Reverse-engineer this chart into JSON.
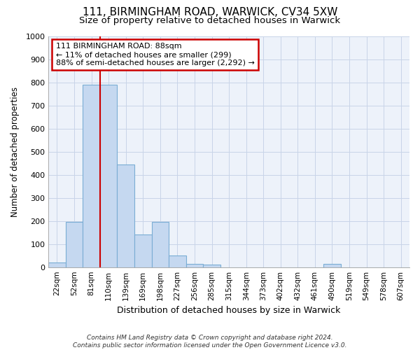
{
  "title1": "111, BIRMINGHAM ROAD, WARWICK, CV34 5XW",
  "title2": "Size of property relative to detached houses in Warwick",
  "xlabel": "Distribution of detached houses by size in Warwick",
  "ylabel": "Number of detached properties",
  "categories": [
    "22sqm",
    "52sqm",
    "81sqm",
    "110sqm",
    "139sqm",
    "169sqm",
    "198sqm",
    "227sqm",
    "256sqm",
    "285sqm",
    "315sqm",
    "344sqm",
    "373sqm",
    "402sqm",
    "432sqm",
    "461sqm",
    "490sqm",
    "519sqm",
    "549sqm",
    "578sqm",
    "607sqm"
  ],
  "values": [
    20,
    195,
    790,
    790,
    445,
    140,
    195,
    50,
    15,
    10,
    0,
    0,
    0,
    0,
    0,
    0,
    15,
    0,
    0,
    0,
    0
  ],
  "bar_color": "#c5d8f0",
  "bar_edge_color": "#7aadd4",
  "grid_color": "#c8d4e8",
  "bg_color": "#edf2fa",
  "vline_color": "#cc0000",
  "vline_x_index": 2.5,
  "annotation_text": "111 BIRMINGHAM ROAD: 88sqm\n← 11% of detached houses are smaller (299)\n88% of semi-detached houses are larger (2,292) →",
  "annotation_box_facecolor": "#ffffff",
  "annotation_box_edgecolor": "#cc0000",
  "footer_text": "Contains HM Land Registry data © Crown copyright and database right 2024.\nContains public sector information licensed under the Open Government Licence v3.0.",
  "fig_facecolor": "#ffffff",
  "ylim": [
    0,
    1000
  ],
  "yticks": [
    0,
    100,
    200,
    300,
    400,
    500,
    600,
    700,
    800,
    900,
    1000
  ]
}
